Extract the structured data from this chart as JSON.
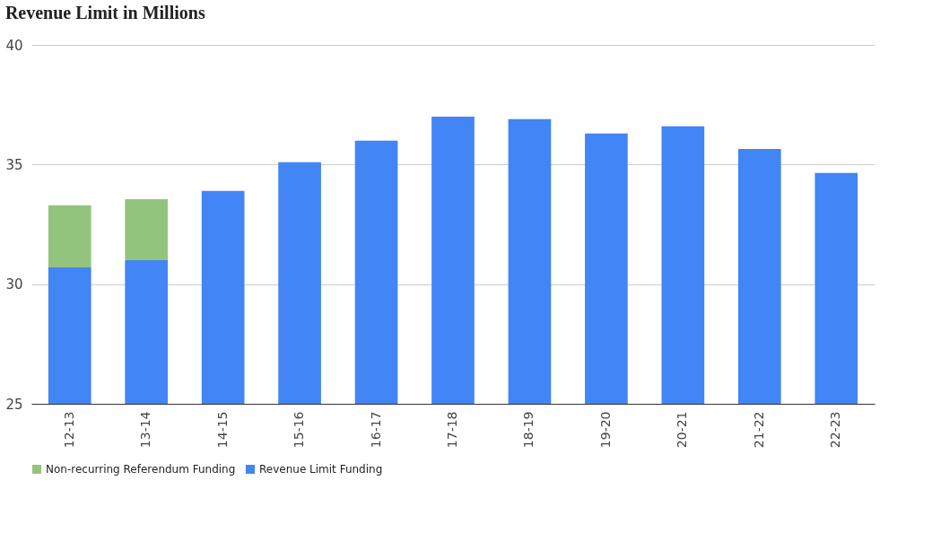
{
  "chart_data": {
    "type": "bar",
    "title": "Revenue Limit in Millions",
    "categories": [
      "12-13",
      "13-14",
      "14-15",
      "15-16",
      "16-17",
      "17-18",
      "18-19",
      "19-20",
      "20-21",
      "21-22",
      "22-23"
    ],
    "series": [
      {
        "name": "Revenue Limit Funding",
        "color": "#4285f4",
        "values": [
          30.7,
          31.0,
          33.9,
          35.1,
          36.0,
          37.0,
          36.9,
          36.3,
          36.6,
          35.65,
          34.65
        ]
      },
      {
        "name": "Non-recurring Referendum Funding",
        "color": "#93c47d",
        "base": [
          30.7,
          31.0,
          null,
          null,
          null,
          null,
          null,
          null,
          null,
          null,
          null
        ],
        "values": [
          2.6,
          2.55,
          null,
          null,
          null,
          null,
          null,
          null,
          null,
          null,
          null
        ]
      }
    ],
    "ylim": [
      25,
      40
    ],
    "yticks": [
      25,
      30,
      35,
      40
    ],
    "grid": "y",
    "legend": "bottom"
  }
}
